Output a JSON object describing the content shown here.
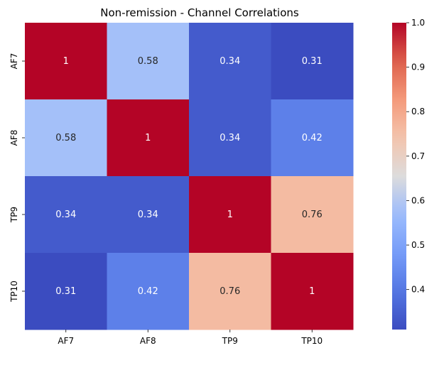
{
  "chart_data": {
    "type": "heatmap",
    "title": "Non-remission - Channel Correlations",
    "x_labels": [
      "AF7",
      "AF8",
      "TP9",
      "TP10"
    ],
    "y_labels": [
      "AF7",
      "AF8",
      "TP9",
      "TP10"
    ],
    "values": [
      [
        1,
        0.58,
        0.34,
        0.31
      ],
      [
        0.58,
        1,
        0.34,
        0.42
      ],
      [
        0.34,
        0.34,
        1,
        0.76
      ],
      [
        0.31,
        0.42,
        0.76,
        1
      ]
    ],
    "annotations": [
      [
        "1",
        "0.58",
        "0.34",
        "0.31"
      ],
      [
        "0.58",
        "1",
        "0.34",
        "0.42"
      ],
      [
        "0.34",
        "0.34",
        "1",
        "0.76"
      ],
      [
        "0.31",
        "0.42",
        "0.76",
        "1"
      ]
    ],
    "colorbar": {
      "colormap": "coolwarm",
      "vmin": 0.31,
      "vmax": 1.0,
      "ticks": [
        "0.4",
        "0.5",
        "0.6",
        "0.7",
        "0.8",
        "0.9",
        "1.0"
      ]
    }
  }
}
